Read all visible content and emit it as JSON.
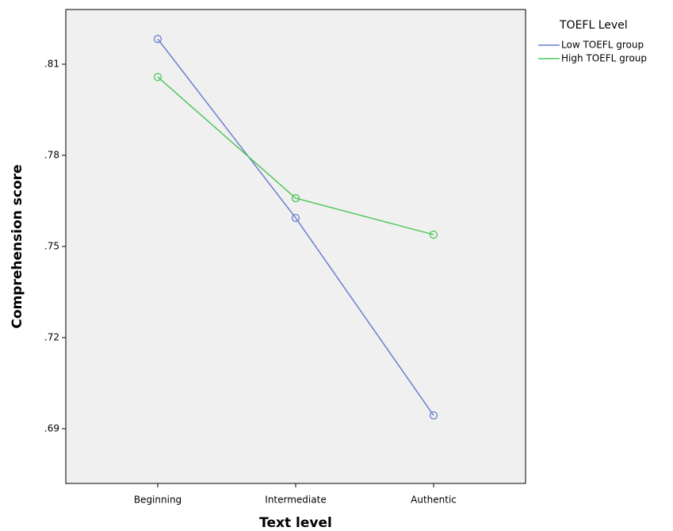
{
  "chart_data": {
    "type": "line",
    "categories": [
      "Beginning",
      "Intermediate",
      "Authentic"
    ],
    "series": [
      {
        "name": "Low TOEFL group",
        "color": "#6a7fd0",
        "values": [
          0.8183,
          0.7594,
          0.6944
        ]
      },
      {
        "name": "High TOEFL group",
        "color": "#4fc85a",
        "values": [
          0.8058,
          0.7659,
          0.7539
        ]
      }
    ],
    "x_label": "Text level",
    "y_label": "Comprehension score",
    "legend_title": "TOEFL Level",
    "legend_position": "upper right outside",
    "ylim": [
      0.672,
      0.828
    ],
    "yticks": [
      {
        "value": 0.69,
        "label": ".69"
      },
      {
        "value": 0.72,
        "label": ".72"
      },
      {
        "value": 0.75,
        "label": ".75"
      },
      {
        "value": 0.78,
        "label": ".78"
      },
      {
        "value": 0.81,
        "label": ".81"
      }
    ]
  }
}
